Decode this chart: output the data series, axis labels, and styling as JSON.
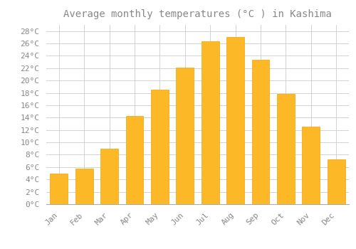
{
  "title": "Average monthly temperatures (°C ) in Kashima",
  "months": [
    "Jan",
    "Feb",
    "Mar",
    "Apr",
    "May",
    "Jun",
    "Jul",
    "Aug",
    "Sep",
    "Oct",
    "Nov",
    "Dec"
  ],
  "temperatures": [
    5.0,
    5.7,
    9.0,
    14.3,
    18.5,
    22.1,
    26.3,
    27.1,
    23.4,
    17.8,
    12.5,
    7.2
  ],
  "bar_color": "#FDB827",
  "bar_edge_color": "#F0A500",
  "background_color": "#FFFFFF",
  "grid_color": "#CCCCCC",
  "text_color": "#888888",
  "ylim": [
    0,
    29
  ],
  "yticks": [
    0,
    2,
    4,
    6,
    8,
    10,
    12,
    14,
    16,
    18,
    20,
    22,
    24,
    26,
    28
  ],
  "title_fontsize": 10,
  "tick_fontsize": 8,
  "font_family": "monospace"
}
